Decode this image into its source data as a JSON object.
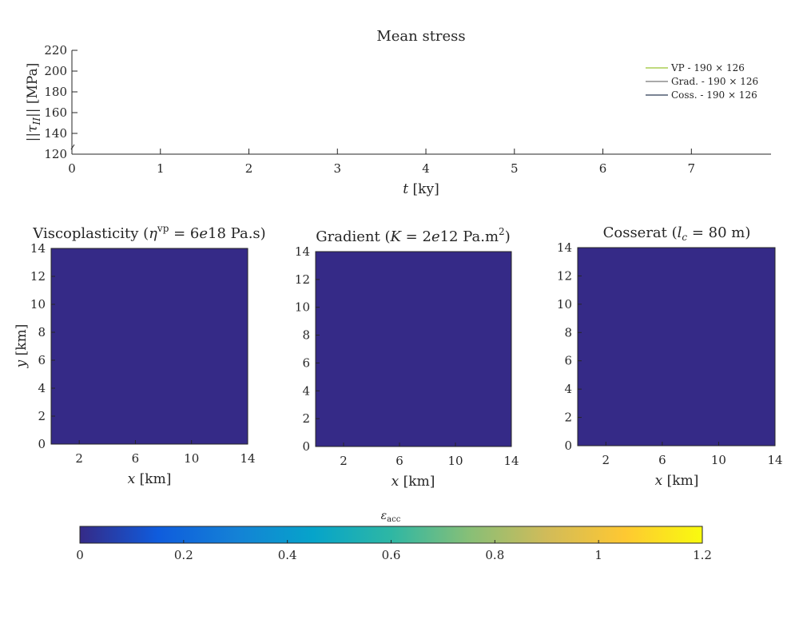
{
  "colors": {
    "map_fill": "#352a87",
    "axis": "#262626",
    "series_vp": "#9ac431",
    "series_grad": "#777777",
    "series_coss": "#2b3a55"
  },
  "colormap_stops": [
    "#352a87",
    "#0f5cdd",
    "#1481d6",
    "#06a4ca",
    "#2eb7a4",
    "#87bf77",
    "#d1bb59",
    "#fec832",
    "#f9fb0e"
  ],
  "stress_plot": {
    "title": "Mean stress",
    "ylabel_parts": [
      "||",
      "τ",
      "II",
      "|| [MPa]"
    ],
    "xlabel_var": "t",
    "xlabel_unit": " [ky]",
    "ylim": [
      120,
      220
    ],
    "yticks": [
      "120",
      "140",
      "160",
      "180",
      "200",
      "220"
    ],
    "xlim": [
      0,
      7.9
    ],
    "xticks": [
      "0",
      "1",
      "2",
      "3",
      "4",
      "5",
      "6",
      "7"
    ],
    "legend": [
      "VP - 190 × 126",
      "Grad. - 190 × 126",
      "Coss. - 190 × 126"
    ]
  },
  "panels": [
    {
      "title_parts": [
        "Viscoplasticity (",
        "η",
        "vp",
        " = 6",
        "e",
        "18 Pa.s)"
      ],
      "yticks": [
        "0",
        "2",
        "4",
        "6",
        "8",
        "10",
        "12",
        "14"
      ],
      "xticks": [
        "2",
        "6",
        "10",
        "14"
      ],
      "xlabel_var": "x",
      "xlabel_unit": " [km]",
      "ylabel_var": "y",
      "ylabel_unit": " [km]"
    },
    {
      "title_parts": [
        "Gradient (",
        "K",
        " = 2",
        "e",
        "12 Pa.m",
        "2",
        ")"
      ],
      "yticks": [
        "0",
        "2",
        "4",
        "6",
        "8",
        "10",
        "12",
        "14"
      ],
      "xticks": [
        "2",
        "6",
        "10",
        "14"
      ],
      "xlabel_var": "x",
      "xlabel_unit": " [km]"
    },
    {
      "title_parts": [
        "Cosserat (",
        "l",
        "c",
        " = 80 m)"
      ],
      "yticks": [
        "0",
        "2",
        "4",
        "6",
        "8",
        "10",
        "12",
        "14"
      ],
      "xticks": [
        "2",
        "6",
        "10",
        "14"
      ],
      "xlabel_var": "x",
      "xlabel_unit": " [km]"
    }
  ],
  "colorbar": {
    "label_main": "ε",
    "label_sub": "acc",
    "ticks": [
      "0",
      "0.2",
      "0.4",
      "0.6",
      "0.8",
      "1",
      "1.2"
    ]
  },
  "chart_data": [
    {
      "type": "line",
      "title": "Mean stress",
      "xlabel": "t [ky]",
      "ylabel": "||τII|| [MPa]",
      "xlim": [
        0,
        7.9
      ],
      "ylim": [
        120,
        220
      ],
      "grid": false,
      "legend_placement": "top-right",
      "series": [
        {
          "name": "VP - 190 × 126",
          "x": [],
          "y": []
        },
        {
          "name": "Grad. - 190 × 126",
          "x": [],
          "y": []
        },
        {
          "name": "Coss. - 190 × 126",
          "x": [],
          "y": []
        }
      ]
    },
    {
      "type": "heatmap",
      "title": "Viscoplasticity (ηvp = 6e18 Pa.s)",
      "xlabel": "x [km]",
      "ylabel": "y [km]",
      "xlim": [
        0,
        14
      ],
      "ylim": [
        0,
        14
      ],
      "value": 0
    },
    {
      "type": "heatmap",
      "title": "Gradient (K = 2e12 Pa.m2)",
      "xlabel": "x [km]",
      "xlim": [
        0,
        14
      ],
      "ylim": [
        0,
        14
      ],
      "value": 0
    },
    {
      "type": "heatmap",
      "title": "Cosserat (lc = 80 m)",
      "xlabel": "x [km]",
      "xlim": [
        0,
        14
      ],
      "ylim": [
        0,
        14
      ],
      "value": 0
    }
  ]
}
